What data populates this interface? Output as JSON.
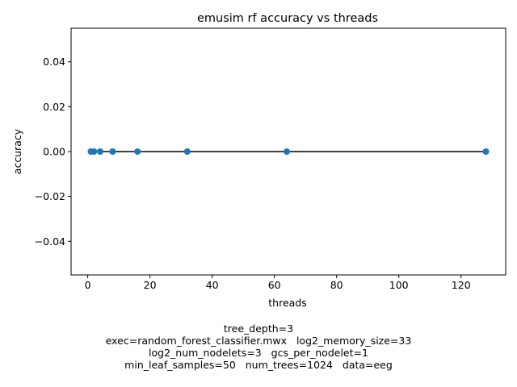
{
  "chart_data": {
    "type": "line",
    "title": "emusim rf accuracy vs threads",
    "xlabel": "threads",
    "ylabel": "accuracy",
    "x": [
      1,
      2,
      4,
      8,
      16,
      32,
      64,
      128
    ],
    "series": [
      {
        "values": [
          0,
          0,
          0,
          0,
          0,
          0,
          0,
          0
        ],
        "color": "#1f77b4",
        "line_color": "#000000"
      }
    ],
    "xlim": [
      -5.35,
      134.35
    ],
    "ylim": [
      -0.055,
      0.055
    ],
    "xticks": [
      0,
      20,
      40,
      60,
      80,
      100,
      120
    ],
    "yticks": [
      -0.04,
      -0.02,
      0.0,
      0.02,
      0.04
    ],
    "ytick_labels": [
      "−0.04",
      "−0.02",
      "0.00",
      "0.02",
      "0.04"
    ],
    "grid": false,
    "markers": true
  },
  "caption": {
    "lines": [
      "tree_depth=3",
      "exec=random_forest_classifier.mwx   log2_memory_size=33",
      "log2_num_nodelets=3   gcs_per_nodelet=1",
      "min_leaf_samples=50   num_trees=1024   data=eeg"
    ]
  }
}
